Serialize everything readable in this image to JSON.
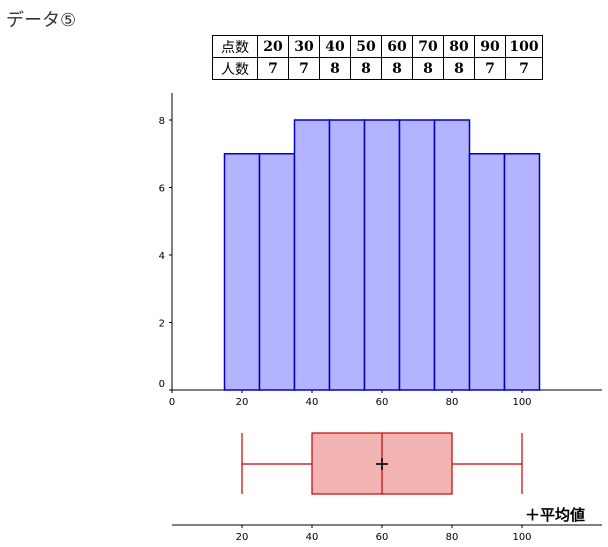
{
  "title": "データ⑤",
  "table": {
    "row1_label": "点数",
    "row2_label": "人数",
    "scores": [
      "20",
      "30",
      "40",
      "50",
      "60",
      "70",
      "80",
      "90",
      "100"
    ],
    "counts": [
      "7",
      "7",
      "8",
      "8",
      "8",
      "8",
      "8",
      "7",
      "7"
    ]
  },
  "chart_data": [
    {
      "type": "bar",
      "x": [
        20,
        30,
        40,
        50,
        60,
        70,
        80,
        90,
        100
      ],
      "values": [
        7,
        7,
        8,
        8,
        8,
        8,
        8,
        7,
        7
      ],
      "bin_width": 10,
      "xlim": [
        0,
        120
      ],
      "ylim": [
        0,
        8.8
      ],
      "x_ticks": [
        "0",
        "20",
        "40",
        "60",
        "80",
        "100"
      ],
      "y_ticks": [
        "0",
        "2",
        "4",
        "6",
        "8"
      ],
      "colors": {
        "fill": "#b3b3ff",
        "stroke": "#0000cc"
      }
    },
    {
      "type": "boxplot",
      "min": 20,
      "q1": 40,
      "median": 60,
      "q3": 80,
      "max": 100,
      "mean": 60,
      "x_ticks": [
        "20",
        "40",
        "60",
        "80",
        "100"
      ],
      "legend": "＋平均値",
      "colors": {
        "fill": "#f2b3b3",
        "stroke": "#cc0000"
      }
    }
  ]
}
